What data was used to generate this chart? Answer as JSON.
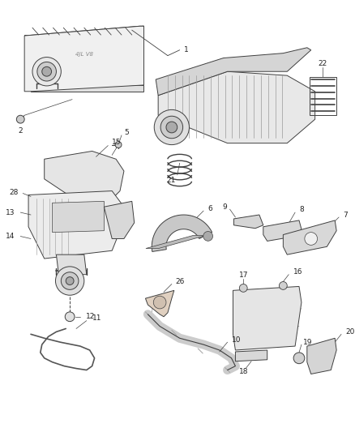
{
  "bg_color": "#ffffff",
  "line_color": "#404040",
  "label_color": "#222222",
  "label_fs": 6.5,
  "lw": 0.7,
  "fig_w": 4.38,
  "fig_h": 5.33,
  "dpi": 100
}
